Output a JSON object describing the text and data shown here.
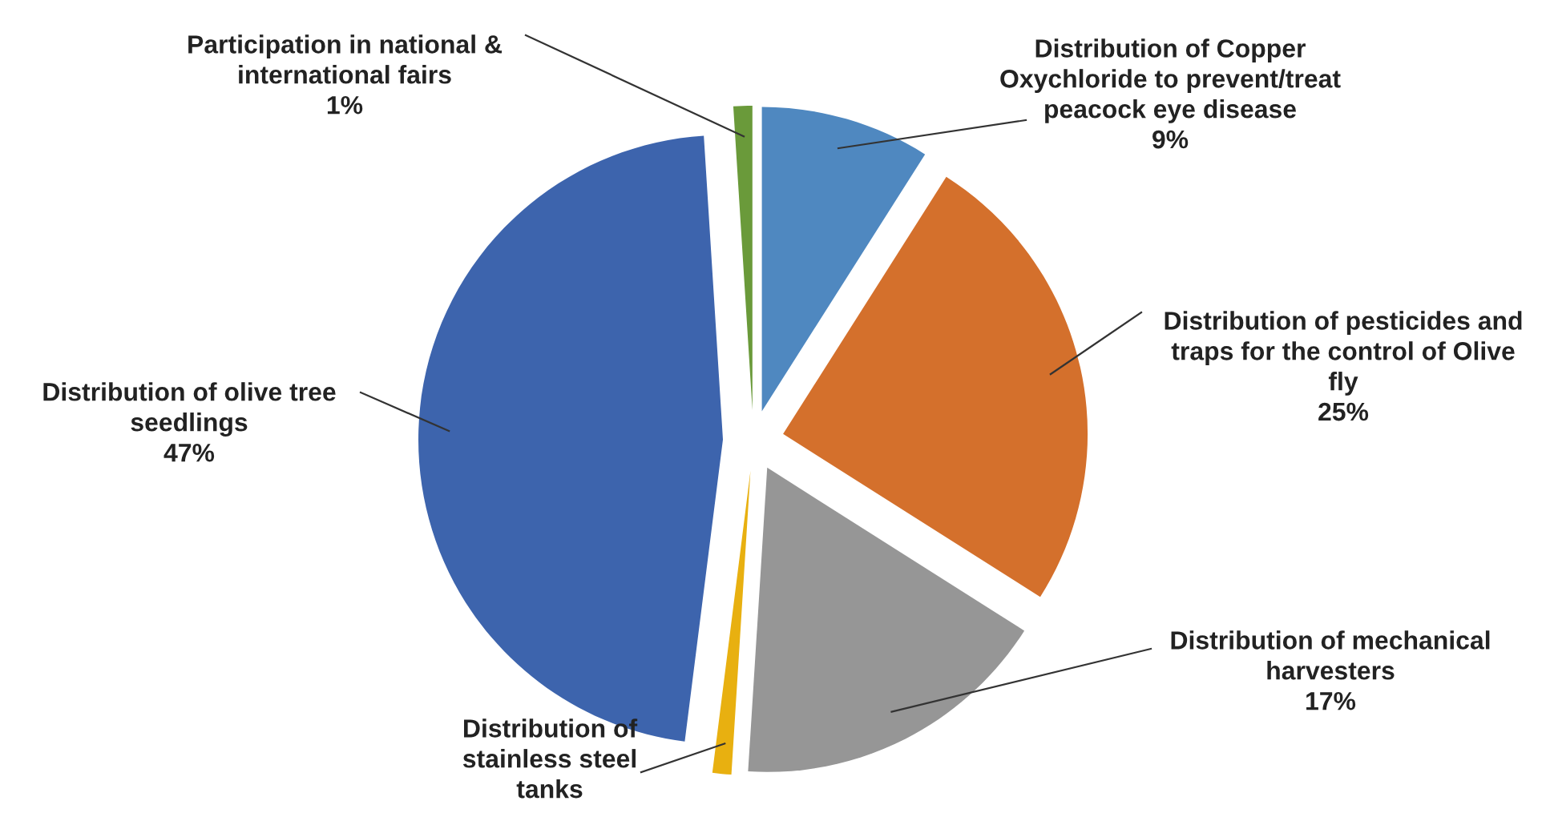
{
  "chart_data": {
    "type": "pie",
    "categories": [
      "Distribution of Copper\nOxychloride to prevent/treat\npeacock eye disease",
      "Distribution of pesticides and\ntraps for the control of Olive\nfly",
      "Distribution of mechanical\nharvesters",
      "Distribution of\nstainless steel\ntanks",
      "Distribution of olive tree\nseedlings",
      "Participation in national &\ninternational fairs"
    ],
    "values": [
      9,
      25,
      17,
      1,
      47,
      1
    ],
    "value_labels": [
      "9%",
      "25%",
      "17%",
      null,
      "47%",
      "1%"
    ],
    "colors": [
      "#4f88c0",
      "#d4702c",
      "#969696",
      "#e8b010",
      "#3d64ad",
      "#6a9a3a"
    ],
    "legend": false
  }
}
